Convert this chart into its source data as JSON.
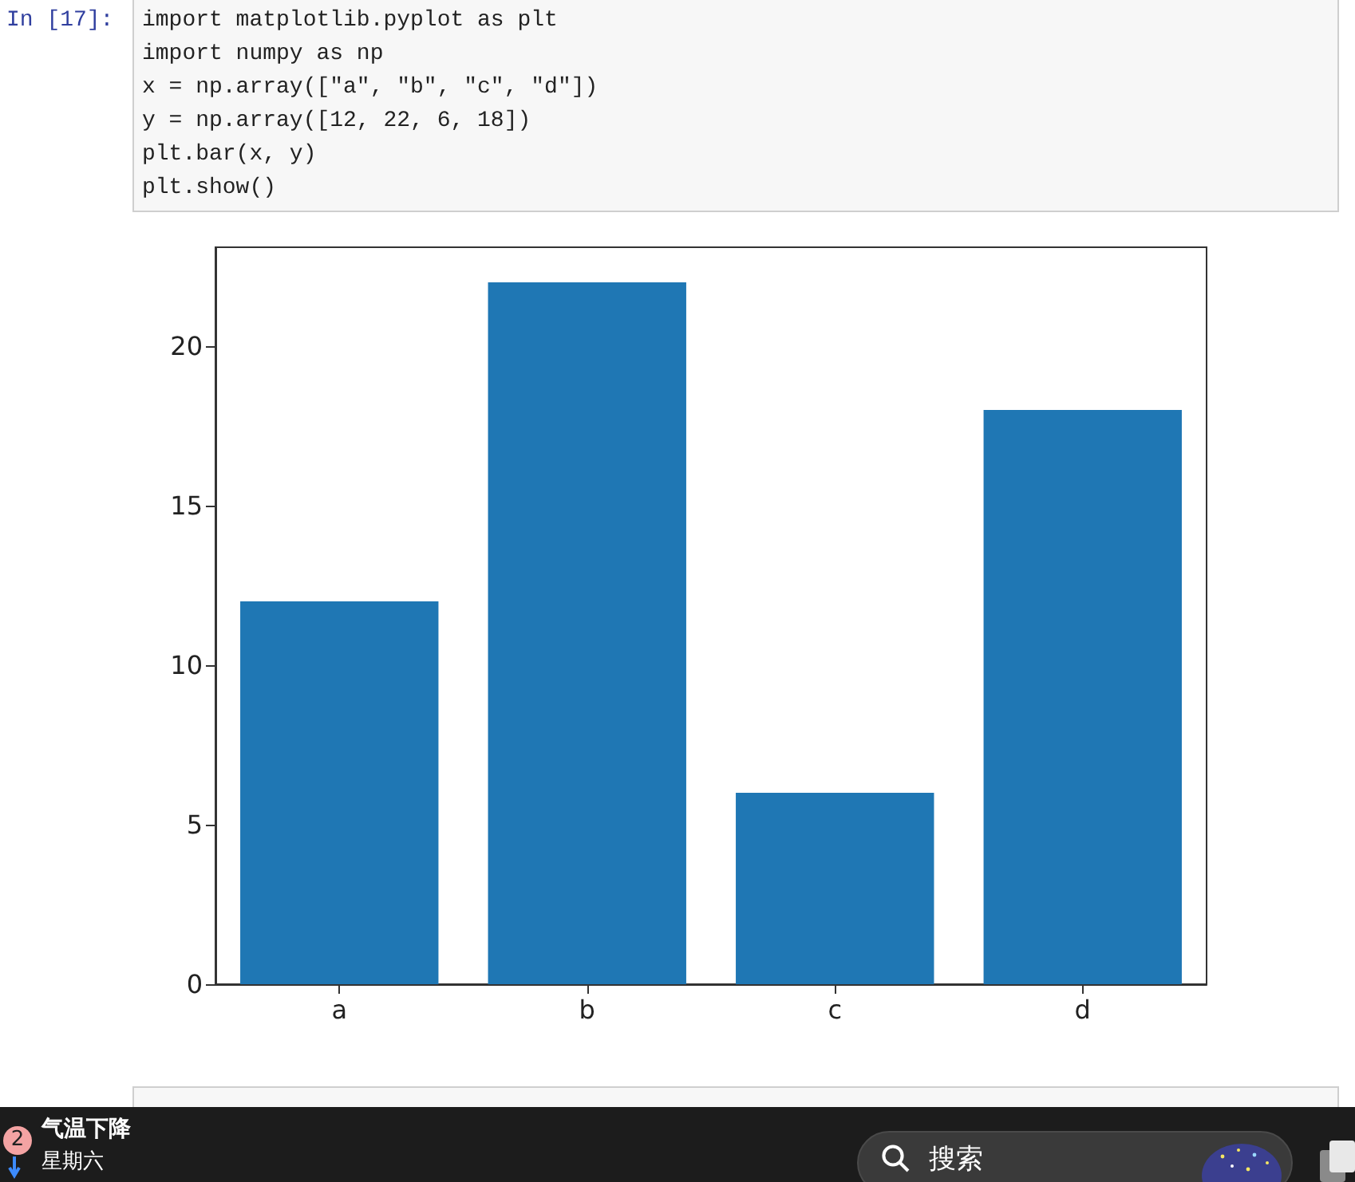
{
  "chart_data": {
    "type": "bar",
    "categories": [
      "a",
      "b",
      "c",
      "d"
    ],
    "values": [
      12,
      22,
      6,
      18
    ],
    "color": "#1f77b4",
    "ylim": [
      0,
      23.1
    ],
    "yticks": [
      0,
      5,
      10,
      15,
      20
    ],
    "grid": false,
    "annotations": [
      "In [17]:",
      "import matplotlib.pyplot as plt",
      "import numpy as np",
      "x = np.array([\"a\", \"b\", \"c\", \"d\"])",
      "y = np.array([12, 22, 6, 18])",
      "plt.bar(x, y)",
      "plt.show()",
      "2",
      "气温下降",
      "星期六",
      "搜索"
    ]
  }
}
